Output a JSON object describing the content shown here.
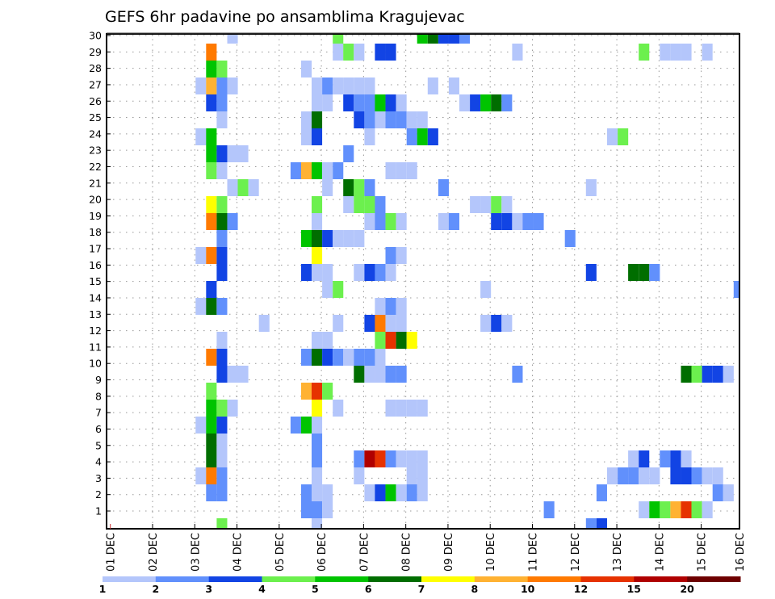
{
  "chart_data": {
    "type": "heatmap",
    "title": "GEFS 6hr padavine po ansamblima Kragujevac",
    "xlabel": "",
    "ylabel": "",
    "time_step_hours": 6,
    "x_tick_labels": [
      "01 DEC",
      "02 DEC",
      "03 DEC",
      "04 DEC",
      "05 DEC",
      "06 DEC",
      "07 DEC",
      "08 DEC",
      "09 DEC",
      "10 DEC",
      "11 DEC",
      "12 DEC",
      "13 DEC",
      "14 DEC",
      "15 DEC",
      "16 DEC"
    ],
    "y_tick_labels": [
      "1",
      "2",
      "3",
      "4",
      "5",
      "6",
      "7",
      "8",
      "9",
      "10",
      "11",
      "12",
      "13",
      "14",
      "15",
      "16",
      "17",
      "18",
      "19",
      "20",
      "21",
      "22",
      "23",
      "24",
      "25",
      "26",
      "27",
      "28",
      "29",
      "30"
    ],
    "grid": true,
    "colorbar": {
      "placement": "bottom",
      "labels": [
        "1",
        "2",
        "3",
        "4",
        "5",
        "6",
        "7",
        "8",
        "10",
        "12",
        "15",
        "20"
      ],
      "bins": [
        {
          "min": 1,
          "max": 2,
          "color": "#b4c6fb"
        },
        {
          "min": 2,
          "max": 3,
          "color": "#6190fc"
        },
        {
          "min": 3,
          "max": 4,
          "color": "#1244e4"
        },
        {
          "min": 4,
          "max": 5,
          "color": "#6cf04e"
        },
        {
          "min": 5,
          "max": 6,
          "color": "#00c400"
        },
        {
          "min": 6,
          "max": 7,
          "color": "#006e00"
        },
        {
          "min": 7,
          "max": 8,
          "color": "#ffff00"
        },
        {
          "min": 8,
          "max": 10,
          "color": "#ffb232"
        },
        {
          "min": 10,
          "max": 12,
          "color": "#ff7a00"
        },
        {
          "min": 12,
          "max": 15,
          "color": "#e63200"
        },
        {
          "min": 15,
          "max": 20,
          "color": "#b00000"
        },
        {
          "min": 20,
          "max": null,
          "color": "#6e0000"
        }
      ]
    },
    "cells_note": "rows ordered top to bottom; each cell = [6h step index from 01 DEC 00Z, colour bin index]",
    "rows": [
      [
        [
          11,
          0
        ],
        [
          21,
          3
        ],
        [
          29,
          4
        ],
        [
          30,
          5
        ],
        [
          31,
          2
        ],
        [
          32,
          2
        ],
        [
          33,
          1
        ]
      ],
      [
        [
          9,
          8
        ],
        [
          21,
          0
        ],
        [
          22,
          3
        ],
        [
          23,
          0
        ],
        [
          25,
          2
        ],
        [
          26,
          2
        ],
        [
          38,
          0
        ],
        [
          50,
          3
        ],
        [
          52,
          0
        ],
        [
          53,
          0
        ],
        [
          54,
          0
        ],
        [
          56,
          0
        ]
      ],
      [
        [
          9,
          4
        ],
        [
          10,
          3
        ],
        [
          18,
          0
        ]
      ],
      [
        [
          8,
          0
        ],
        [
          9,
          7
        ],
        [
          10,
          1
        ],
        [
          11,
          0
        ],
        [
          19,
          0
        ],
        [
          20,
          1
        ],
        [
          21,
          0
        ],
        [
          22,
          0
        ],
        [
          23,
          0
        ],
        [
          24,
          0
        ],
        [
          30,
          0
        ],
        [
          32,
          0
        ]
      ],
      [
        [
          9,
          2
        ],
        [
          10,
          1
        ],
        [
          19,
          0
        ],
        [
          20,
          0
        ],
        [
          22,
          2
        ],
        [
          23,
          1
        ],
        [
          24,
          1
        ],
        [
          25,
          4
        ],
        [
          26,
          2
        ],
        [
          27,
          0
        ],
        [
          33,
          0
        ],
        [
          34,
          2
        ],
        [
          35,
          4
        ],
        [
          36,
          5
        ],
        [
          37,
          1
        ]
      ],
      [
        [
          10,
          0
        ],
        [
          18,
          0
        ],
        [
          19,
          5
        ],
        [
          23,
          2
        ],
        [
          24,
          1
        ],
        [
          25,
          0
        ],
        [
          26,
          1
        ],
        [
          27,
          1
        ],
        [
          28,
          0
        ],
        [
          29,
          0
        ]
      ],
      [
        [
          8,
          0
        ],
        [
          9,
          4
        ],
        [
          18,
          0
        ],
        [
          19,
          2
        ],
        [
          24,
          0
        ],
        [
          28,
          1
        ],
        [
          29,
          4
        ],
        [
          30,
          2
        ],
        [
          47,
          0
        ],
        [
          48,
          3
        ]
      ],
      [
        [
          9,
          4
        ],
        [
          10,
          2
        ],
        [
          11,
          0
        ],
        [
          12,
          0
        ],
        [
          22,
          1
        ]
      ],
      [
        [
          9,
          3
        ],
        [
          10,
          0
        ],
        [
          17,
          1
        ],
        [
          18,
          7
        ],
        [
          19,
          4
        ],
        [
          20,
          0
        ],
        [
          21,
          1
        ],
        [
          26,
          0
        ],
        [
          27,
          0
        ],
        [
          28,
          0
        ]
      ],
      [
        [
          11,
          0
        ],
        [
          12,
          3
        ],
        [
          13,
          0
        ],
        [
          20,
          0
        ],
        [
          22,
          5
        ],
        [
          23,
          3
        ],
        [
          24,
          1
        ],
        [
          31,
          1
        ],
        [
          45,
          0
        ]
      ],
      [
        [
          9,
          6
        ],
        [
          10,
          3
        ],
        [
          19,
          3
        ],
        [
          22,
          0
        ],
        [
          23,
          3
        ],
        [
          24,
          3
        ],
        [
          25,
          1
        ],
        [
          34,
          0
        ],
        [
          35,
          0
        ],
        [
          36,
          3
        ],
        [
          37,
          0
        ]
      ],
      [
        [
          9,
          8
        ],
        [
          10,
          5
        ],
        [
          11,
          1
        ],
        [
          19,
          0
        ],
        [
          24,
          0
        ],
        [
          25,
          1
        ],
        [
          26,
          3
        ],
        [
          27,
          0
        ],
        [
          31,
          0
        ],
        [
          32,
          1
        ],
        [
          36,
          2
        ],
        [
          37,
          2
        ],
        [
          38,
          0
        ],
        [
          39,
          1
        ],
        [
          40,
          1
        ]
      ],
      [
        [
          10,
          1
        ],
        [
          18,
          4
        ],
        [
          19,
          5
        ],
        [
          20,
          2
        ],
        [
          21,
          0
        ],
        [
          22,
          0
        ],
        [
          23,
          0
        ],
        [
          43,
          1
        ]
      ],
      [
        [
          8,
          0
        ],
        [
          9,
          8
        ],
        [
          10,
          2
        ],
        [
          19,
          6
        ],
        [
          26,
          1
        ],
        [
          27,
          0
        ]
      ],
      [
        [
          10,
          2
        ],
        [
          18,
          2
        ],
        [
          19,
          0
        ],
        [
          20,
          0
        ],
        [
          23,
          0
        ],
        [
          24,
          2
        ],
        [
          25,
          1
        ],
        [
          26,
          0
        ],
        [
          45,
          2
        ],
        [
          49,
          5
        ],
        [
          50,
          5
        ],
        [
          51,
          1
        ]
      ],
      [
        [
          9,
          2
        ],
        [
          20,
          0
        ],
        [
          21,
          3
        ],
        [
          35,
          0
        ],
        [
          59,
          1
        ]
      ],
      [
        [
          8,
          0
        ],
        [
          9,
          5
        ],
        [
          10,
          1
        ],
        [
          25,
          0
        ],
        [
          26,
          1
        ],
        [
          27,
          0
        ]
      ],
      [
        [
          14,
          0
        ],
        [
          21,
          0
        ],
        [
          24,
          2
        ],
        [
          25,
          8
        ],
        [
          26,
          0
        ],
        [
          27,
          0
        ],
        [
          35,
          0
        ],
        [
          36,
          2
        ],
        [
          37,
          0
        ]
      ],
      [
        [
          10,
          0
        ],
        [
          19,
          0
        ],
        [
          20,
          0
        ],
        [
          25,
          3
        ],
        [
          26,
          9
        ],
        [
          27,
          5
        ],
        [
          28,
          6
        ]
      ],
      [
        [
          9,
          8
        ],
        [
          10,
          2
        ],
        [
          18,
          1
        ],
        [
          19,
          5
        ],
        [
          20,
          2
        ],
        [
          21,
          1
        ],
        [
          22,
          0
        ],
        [
          23,
          1
        ],
        [
          24,
          1
        ],
        [
          25,
          0
        ]
      ],
      [
        [
          10,
          2
        ],
        [
          11,
          0
        ],
        [
          12,
          0
        ],
        [
          23,
          5
        ],
        [
          24,
          0
        ],
        [
          25,
          0
        ],
        [
          26,
          1
        ],
        [
          27,
          1
        ],
        [
          38,
          1
        ],
        [
          54,
          5
        ],
        [
          55,
          3
        ],
        [
          56,
          2
        ],
        [
          57,
          2
        ],
        [
          58,
          0
        ]
      ],
      [
        [
          9,
          3
        ],
        [
          18,
          7
        ],
        [
          19,
          9
        ],
        [
          20,
          3
        ]
      ],
      [
        [
          9,
          4
        ],
        [
          10,
          3
        ],
        [
          11,
          0
        ],
        [
          19,
          6
        ],
        [
          21,
          0
        ],
        [
          26,
          0
        ],
        [
          27,
          0
        ],
        [
          28,
          0
        ],
        [
          29,
          0
        ]
      ],
      [
        [
          8,
          0
        ],
        [
          9,
          4
        ],
        [
          10,
          2
        ],
        [
          17,
          1
        ],
        [
          18,
          4
        ],
        [
          19,
          0
        ]
      ],
      [
        [
          9,
          5
        ],
        [
          10,
          0
        ],
        [
          19,
          1
        ]
      ],
      [
        [
          9,
          5
        ],
        [
          10,
          0
        ],
        [
          19,
          1
        ],
        [
          23,
          1
        ],
        [
          24,
          10
        ],
        [
          25,
          9
        ],
        [
          26,
          1
        ],
        [
          27,
          0
        ],
        [
          28,
          0
        ],
        [
          29,
          0
        ],
        [
          49,
          0
        ],
        [
          50,
          2
        ],
        [
          52,
          1
        ],
        [
          53,
          2
        ],
        [
          54,
          0
        ]
      ],
      [
        [
          8,
          0
        ],
        [
          9,
          8
        ],
        [
          10,
          1
        ],
        [
          19,
          0
        ],
        [
          23,
          0
        ],
        [
          28,
          0
        ],
        [
          29,
          0
        ],
        [
          47,
          0
        ],
        [
          48,
          1
        ],
        [
          49,
          1
        ],
        [
          50,
          0
        ],
        [
          51,
          0
        ],
        [
          53,
          2
        ],
        [
          54,
          2
        ],
        [
          55,
          1
        ],
        [
          56,
          0
        ],
        [
          57,
          0
        ]
      ],
      [
        [
          9,
          1
        ],
        [
          10,
          1
        ],
        [
          18,
          1
        ],
        [
          19,
          0
        ],
        [
          20,
          0
        ],
        [
          24,
          0
        ],
        [
          25,
          2
        ],
        [
          26,
          4
        ],
        [
          27,
          0
        ],
        [
          28,
          1
        ],
        [
          29,
          0
        ],
        [
          46,
          1
        ],
        [
          57,
          1
        ],
        [
          58,
          0
        ]
      ],
      [
        [
          18,
          1
        ],
        [
          19,
          1
        ],
        [
          20,
          0
        ],
        [
          41,
          1
        ],
        [
          50,
          0
        ],
        [
          51,
          4
        ],
        [
          52,
          3
        ],
        [
          53,
          7
        ],
        [
          54,
          9
        ],
        [
          55,
          3
        ],
        [
          56,
          0
        ]
      ],
      [
        [
          10,
          3
        ],
        [
          19,
          0
        ],
        [
          45,
          1
        ],
        [
          46,
          2
        ]
      ]
    ]
  }
}
